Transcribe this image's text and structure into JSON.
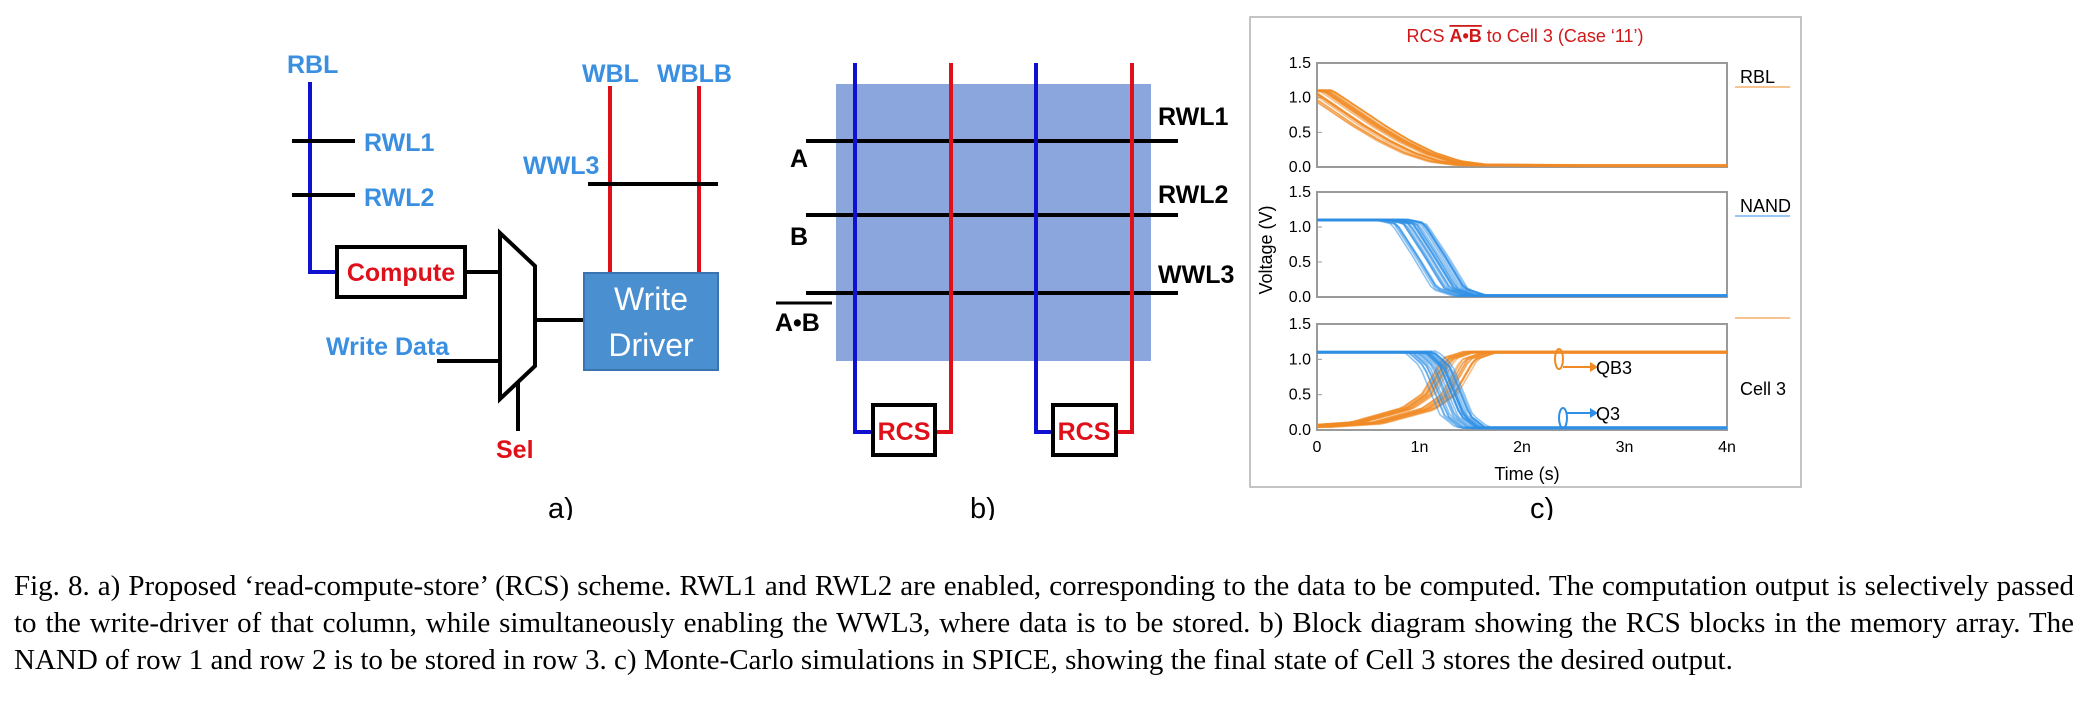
{
  "panel_a": {
    "rbl": "RBL",
    "rwl1": "RWL1",
    "rwl2": "RWL2",
    "compute": "Compute",
    "write_data": "Write Data",
    "sel": "Sel",
    "wbl": "WBL",
    "wblb": "WBLB",
    "wwl3": "WWL3",
    "write_driver_line1": "Write",
    "write_driver_line2": "Driver",
    "sublabel": "a)"
  },
  "panel_b": {
    "row_a": "A",
    "row_b": "B",
    "row_ab": "A•B",
    "rwl1": "RWL1",
    "rwl2": "RWL2",
    "wwl3": "WWL3",
    "rcs_left": "RCS",
    "rcs_right": "RCS",
    "sublabel": "b)"
  },
  "panel_c": {
    "title_prefix": "RCS ",
    "title_overlined": "A•B",
    "title_suffix": " to Cell 3 (Case ‘11’)",
    "ylabel": "Voltage (V)",
    "xlabel": "Time (s)",
    "xticks": [
      "0",
      "1n",
      "2n",
      "3n",
      "4n"
    ],
    "yticks": [
      "0.0",
      "0.5",
      "1.0",
      "1.5"
    ],
    "subplots": [
      "RBL",
      "NAND",
      "Cell 3"
    ],
    "qb3": "QB3",
    "q3": "Q3",
    "sublabel": "c)"
  },
  "chart_data": {
    "type": "line",
    "title": "RCS A•B to Cell 3 (Case ‘11’)",
    "xlabel": "Time (s)",
    "ylabel": "Voltage (V)",
    "xlim": [
      0,
      4e-09
    ],
    "ylim": [
      0,
      1.5
    ],
    "series": [
      {
        "name": "RBL",
        "color": "#f08a24",
        "x": [
          0,
          2.5e-10,
          5e-10,
          7.5e-10,
          1e-09,
          1.25e-09,
          1.5e-09,
          2.5e-09,
          4e-09
        ],
        "y": [
          1.1,
          0.85,
          0.6,
          0.38,
          0.2,
          0.08,
          0.03,
          0.02,
          0.02
        ]
      },
      {
        "name": "NAND",
        "color": "#2f8fe6",
        "x": [
          0,
          7.5e-10,
          9e-10,
          1.1e-09,
          1.3e-09,
          1.5e-09,
          4e-09
        ],
        "y": [
          1.1,
          1.1,
          1.05,
          0.6,
          0.12,
          0.02,
          0.02
        ]
      },
      {
        "name": "QB3",
        "color": "#f08a24",
        "x": [
          0,
          5e-10,
          1e-09,
          1.2e-09,
          1.4e-09,
          1.6e-09,
          4e-09
        ],
        "y": [
          0.05,
          0.1,
          0.3,
          0.5,
          1.0,
          1.1,
          1.1
        ]
      },
      {
        "name": "Q3",
        "color": "#2f8fe6",
        "x": [
          0,
          1e-09,
          1.15e-09,
          1.35e-09,
          1.5e-09,
          4e-09
        ],
        "y": [
          1.1,
          1.1,
          0.9,
          0.2,
          0.03,
          0.03
        ]
      }
    ]
  },
  "caption": {
    "text": "Fig. 8.   a) Proposed ‘read-compute-store’ (RCS) scheme. RWL1 and RWL2 are enabled, corresponding to the data to be computed. The computation output is selectively passed to the write-driver of that column, while simultaneously enabling the WWL3, where data is to be stored. b) Block diagram showing the RCS blocks in the memory array. The NAND of row 1 and row 2 is to be stored in row 3. c) Monte-Carlo simulations in SPICE, showing the final state of Cell 3 stores the desired output."
  }
}
